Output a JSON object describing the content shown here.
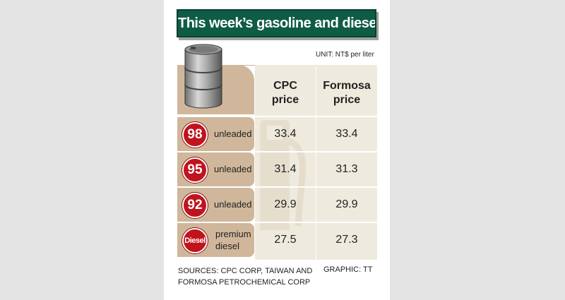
{
  "title": "This week’s gasoline and diesel prices",
  "unit": "UNIT: NT$ per liter",
  "columns": {
    "cpc": [
      "CPC",
      "price"
    ],
    "formosa": [
      "Formosa",
      "price"
    ]
  },
  "rows": [
    {
      "badge": "98",
      "fuel": "unleaded",
      "cpc": "33.4",
      "formosa": "33.4"
    },
    {
      "badge": "95",
      "fuel": "unleaded",
      "cpc": "31.4",
      "formosa": "31.3"
    },
    {
      "badge": "92",
      "fuel": "unleaded",
      "cpc": "29.9",
      "formosa": "29.9"
    },
    {
      "badge": "Diesel",
      "fuel_lines": [
        "premium",
        "diesel"
      ],
      "cpc": "27.5",
      "formosa": "27.3"
    }
  ],
  "sources": [
    "SOURCES: CPC CORP, TAIWAN AND",
    "FORMOSA PETROCHEMICAL CORP"
  ],
  "credit": "GRAPHIC: TT",
  "colors": {
    "title_bg": "#0f5c46",
    "badge_red": "#c0131c",
    "tan": "#d0b79b",
    "cream": "#eeeade"
  }
}
